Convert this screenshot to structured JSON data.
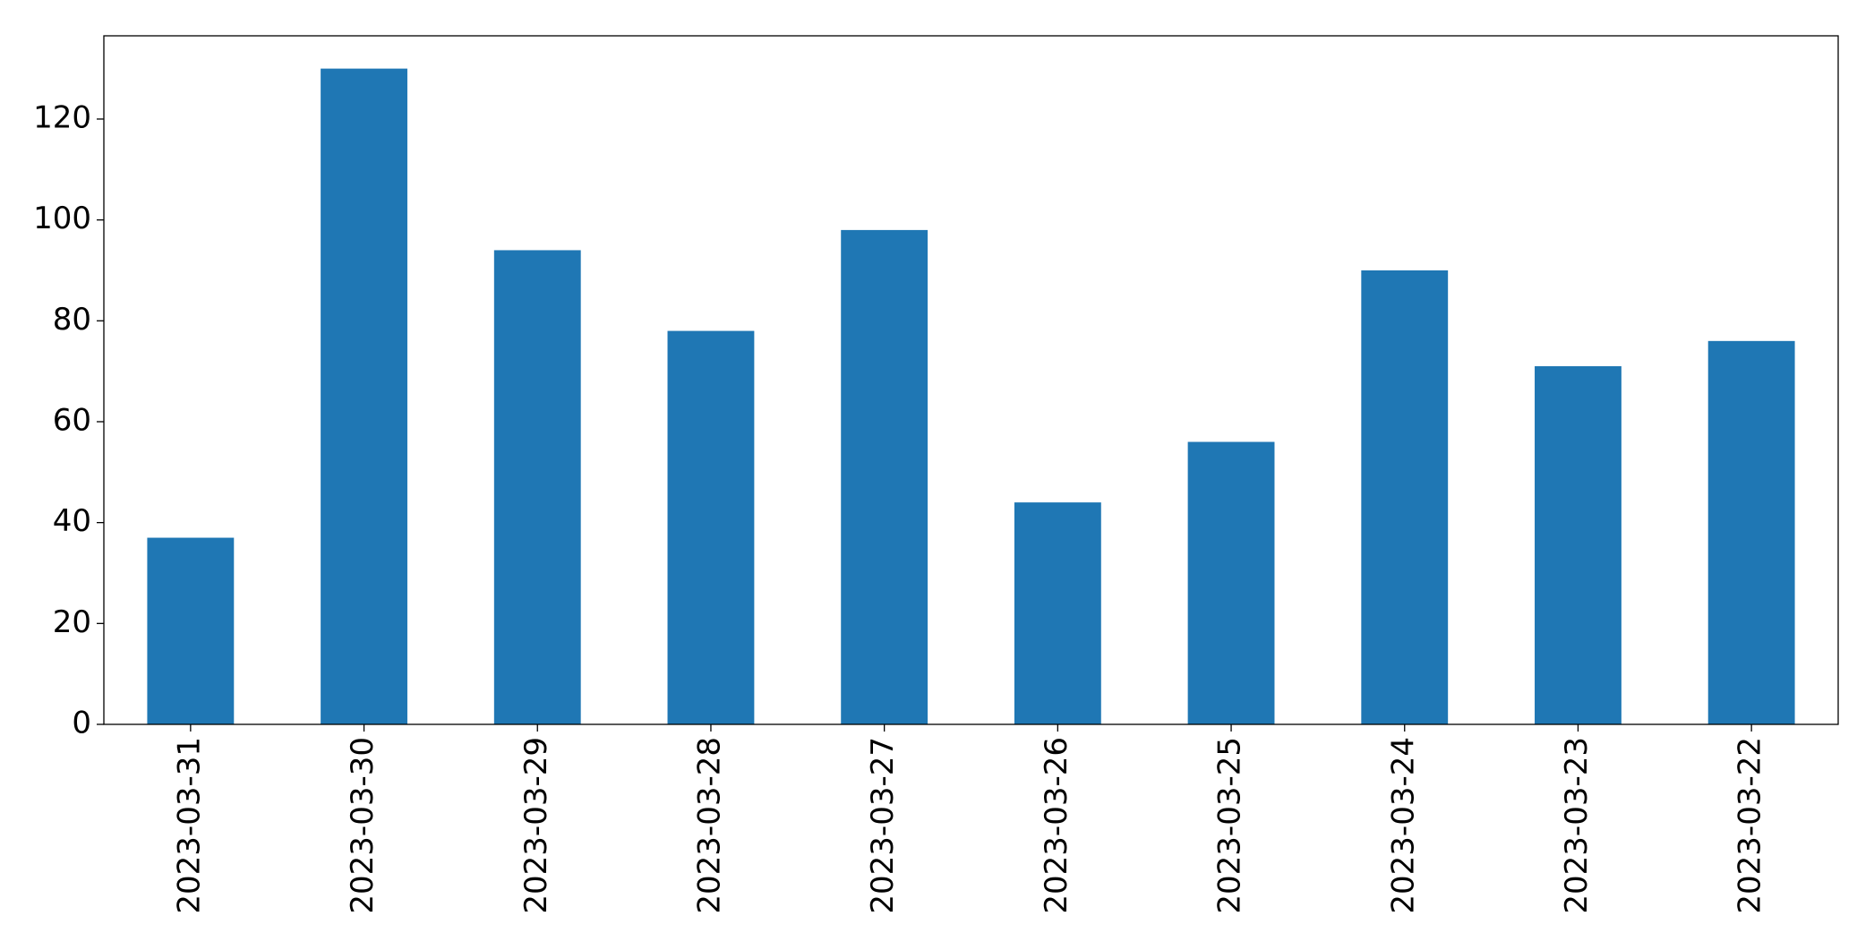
{
  "chart_data": {
    "type": "bar",
    "categories": [
      "2023-03-31",
      "2023-03-30",
      "2023-03-29",
      "2023-03-28",
      "2023-03-27",
      "2023-03-26",
      "2023-03-25",
      "2023-03-24",
      "2023-03-23",
      "2023-03-22"
    ],
    "values": [
      37,
      130,
      94,
      78,
      98,
      44,
      56,
      90,
      71,
      76
    ],
    "color": "#1f77b4",
    "ylim": [
      0,
      136.5
    ],
    "yticks": [
      0,
      20,
      40,
      60,
      80,
      100,
      120
    ],
    "grid": false
  }
}
